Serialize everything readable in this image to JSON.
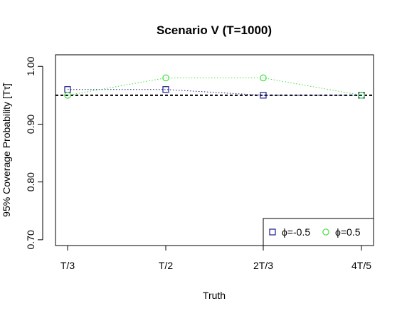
{
  "chart_data": {
    "type": "line",
    "title": "Scenario V (T=1000)",
    "xlabel": "Truth",
    "ylabel": "95% Coverage Probability [Tτ̃]",
    "categories": [
      "T/3",
      "T/2",
      "2T/3",
      "4T/5"
    ],
    "ylim": [
      0.69,
      1.02
    ],
    "yticks": [
      0.7,
      0.8,
      0.9,
      1.0
    ],
    "ytick_labels": [
      "0.70",
      "0.80",
      "0.90",
      "1.00"
    ],
    "reference_line": 0.95,
    "grid": false,
    "legend_position": "bottom-right",
    "series": [
      {
        "name": "ϕ=-0.5",
        "marker": "square",
        "color": "#1a1a8c",
        "values": [
          0.96,
          0.96,
          0.95,
          0.95
        ]
      },
      {
        "name": "ϕ=0.5",
        "marker": "circle",
        "color": "#44dd44",
        "values": [
          0.95,
          0.98,
          0.98,
          0.95
        ]
      }
    ]
  }
}
